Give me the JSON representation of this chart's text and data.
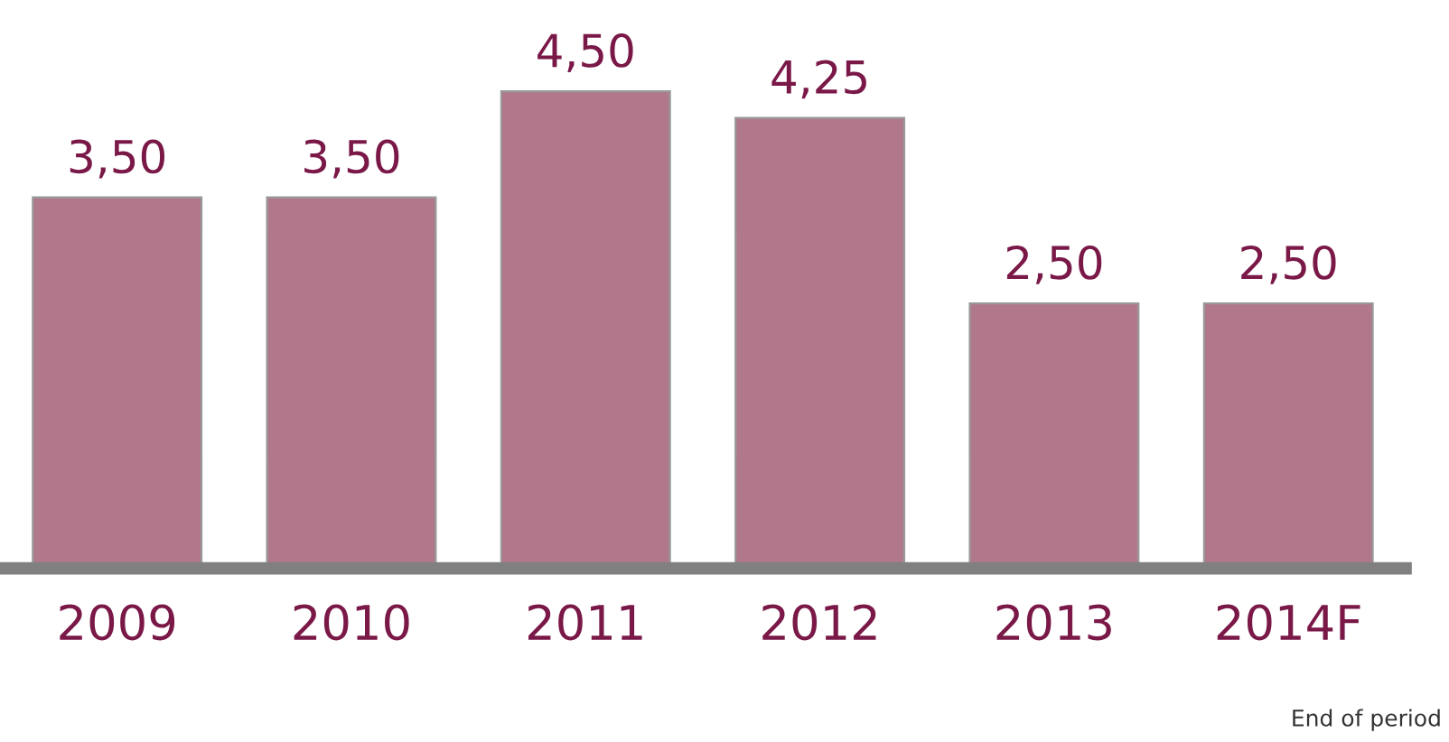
{
  "chart_data": {
    "type": "bar",
    "categories": [
      "2009",
      "2010",
      "2011",
      "2012",
      "2013",
      "2014F"
    ],
    "values": [
      3.5,
      3.5,
      4.5,
      4.25,
      2.5,
      2.5
    ],
    "value_labels": [
      "3,50",
      "3,50",
      "4,50",
      "4,25",
      "2,50",
      "2,50"
    ],
    "color": "#b0788a",
    "annotations": [
      "End of period"
    ],
    "grid": false,
    "legend": false
  }
}
